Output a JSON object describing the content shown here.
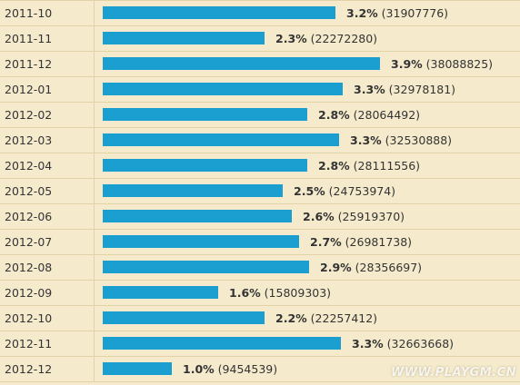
{
  "chart_data": {
    "type": "bar",
    "orientation": "horizontal",
    "categories": [
      "2011-10",
      "2011-11",
      "2011-12",
      "2012-01",
      "2012-02",
      "2012-03",
      "2012-04",
      "2012-05",
      "2012-06",
      "2012-07",
      "2012-08",
      "2012-09",
      "2012-10",
      "2012-11",
      "2012-12"
    ],
    "percent_labels": [
      "3.2%",
      "2.3%",
      "3.9%",
      "3.3%",
      "2.8%",
      "3.3%",
      "2.8%",
      "2.5%",
      "2.6%",
      "2.7%",
      "2.9%",
      "1.6%",
      "2.2%",
      "3.3%",
      "1.0%"
    ],
    "count_labels": [
      "(31907776)",
      "(22272280)",
      "(38088825)",
      "(32978181)",
      "(28064492)",
      "(32530888)",
      "(28111556)",
      "(24753974)",
      "(25919370)",
      "(26981738)",
      "(28356697)",
      "(15809303)",
      "(22257412)",
      "(32663668)",
      "(9454539)"
    ],
    "values": [
      31907776,
      22272280,
      38088825,
      32978181,
      28064492,
      32530888,
      28111556,
      24753974,
      25919370,
      26981738,
      28356697,
      15809303,
      22257412,
      32663668,
      9454539
    ],
    "bar_color": "#1a9fd0",
    "background": "#f5ebcc",
    "grid": "row-lines"
  },
  "watermark": "WWW.PLAYGM.CN"
}
